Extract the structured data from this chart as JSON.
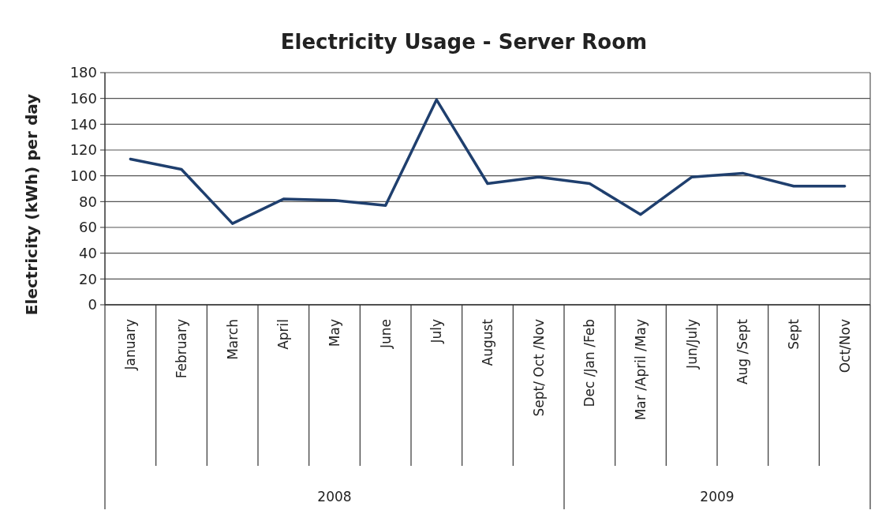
{
  "chart_data": {
    "type": "line",
    "title": "Electricity Usage - Server Room",
    "ylabel": "Electricity (kWh) per day",
    "categories": [
      "January",
      "February",
      "March",
      "April",
      "May",
      "June",
      "July",
      "August",
      "Sept/ Oct /Nov",
      "Dec /Jan /Feb",
      "Mar /April /May",
      "Jun/July",
      "Aug /Sept",
      "Sept",
      "Oct/Nov"
    ],
    "series": [
      {
        "color": "#1f3f6e",
        "values": [
          113,
          105,
          63,
          82,
          81,
          77,
          159,
          94,
          99,
          94,
          70,
          99,
          102,
          92,
          92
        ]
      }
    ],
    "ylim": [
      0,
      180
    ],
    "yticks": [
      0,
      20,
      40,
      60,
      80,
      100,
      120,
      140,
      160,
      180
    ],
    "grid": "y",
    "marker": "none",
    "line_style": "solid",
    "annotations": [
      "2008",
      "2009"
    ]
  }
}
